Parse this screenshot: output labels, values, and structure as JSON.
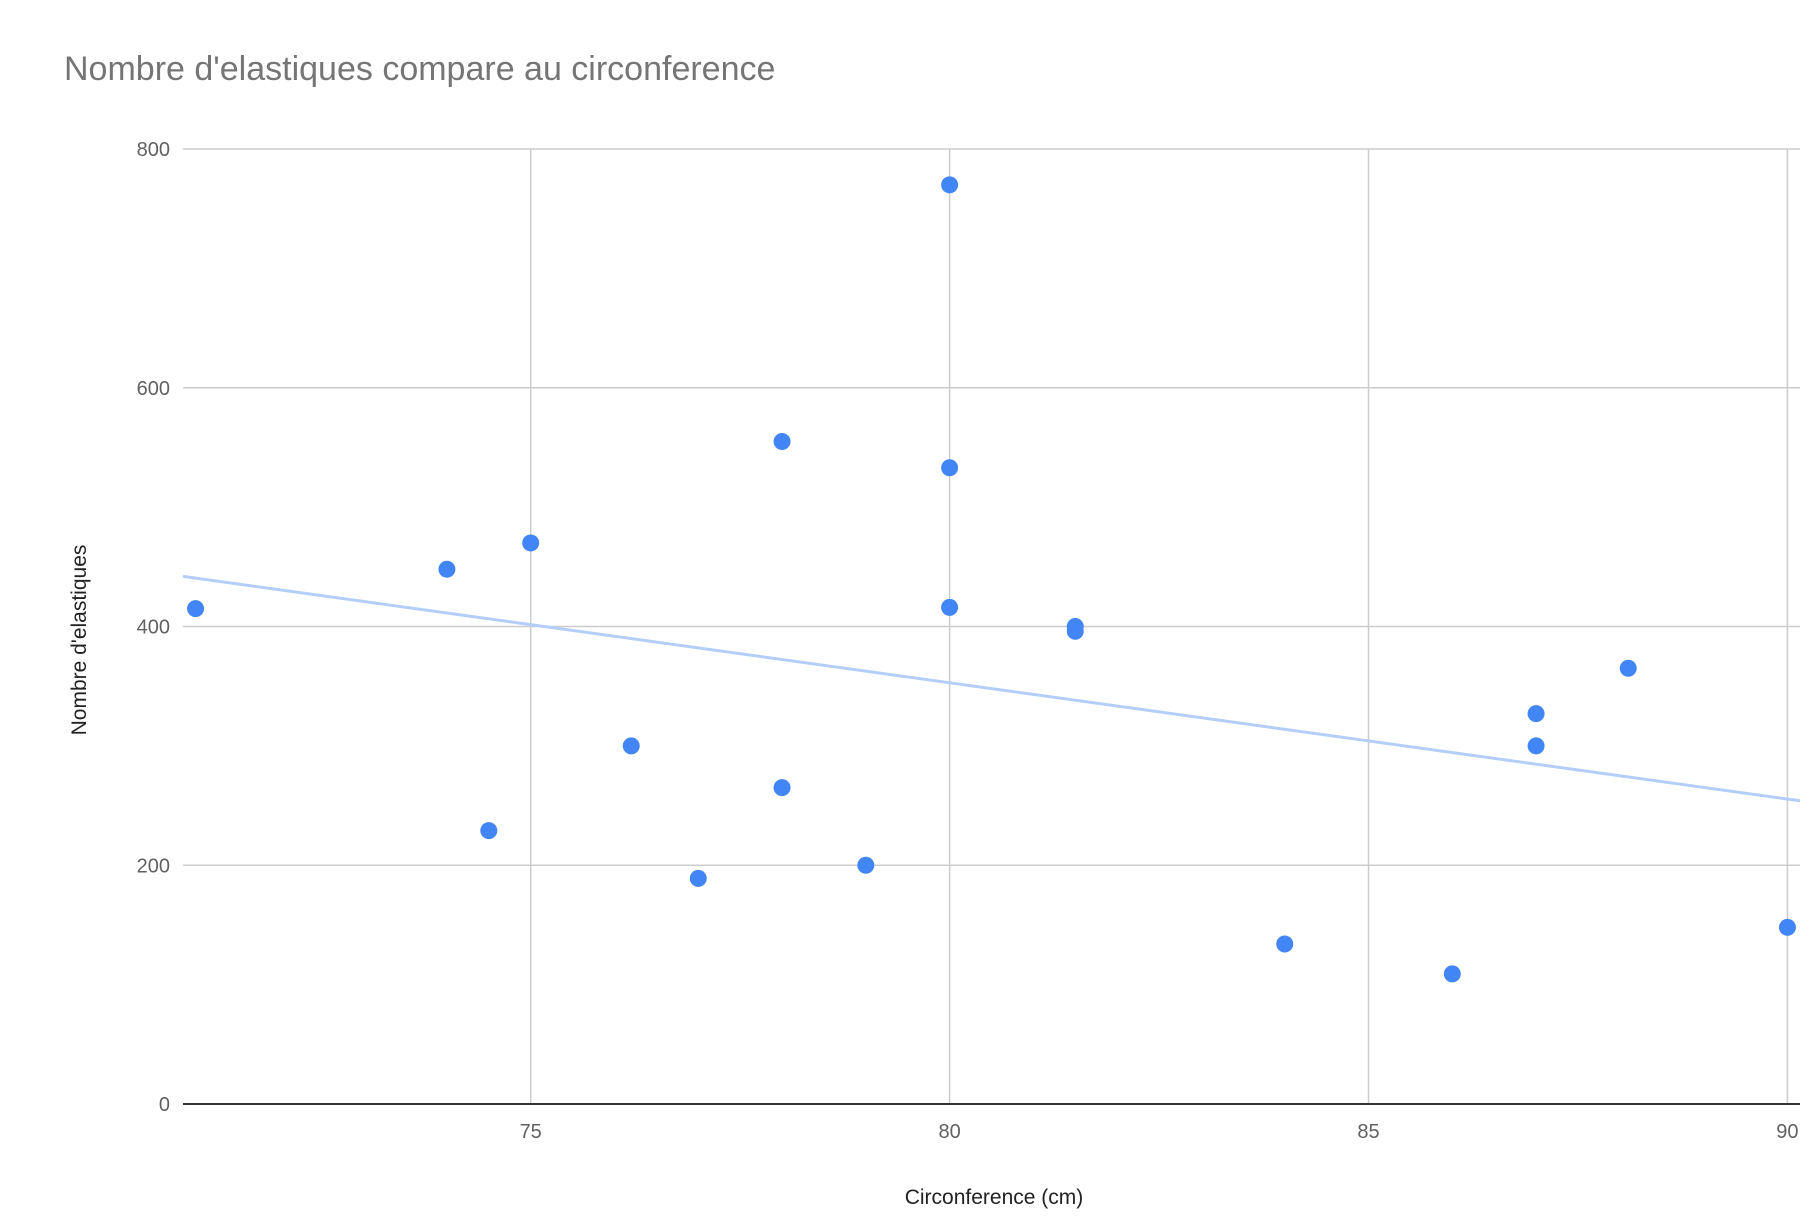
{
  "chart_data": {
    "type": "scatter",
    "title": "Nombre d'elastiques compare au circonference",
    "xlabel": "Circonference (cm)",
    "ylabel": "Nombre d'elastiques",
    "xlim": [
      70.85,
      90.15
    ],
    "ylim": [
      0,
      800
    ],
    "x_ticks": [
      {
        "value": 75,
        "label": "75"
      },
      {
        "value": 80,
        "label": "80"
      },
      {
        "value": 85,
        "label": "85"
      },
      {
        "value": 90,
        "label": "90"
      }
    ],
    "y_ticks": [
      {
        "value": 0,
        "label": "0"
      },
      {
        "value": 200,
        "label": "200"
      },
      {
        "value": 400,
        "label": "400"
      },
      {
        "value": 600,
        "label": "600"
      },
      {
        "value": 800,
        "label": "800"
      }
    ],
    "grid": true,
    "legend": "none",
    "colors": {
      "points": "#4285f4",
      "trendline": "#b3cefa"
    },
    "series": [
      {
        "points": [
          {
            "x": 71,
            "y": 415
          },
          {
            "x": 74,
            "y": 448
          },
          {
            "x": 74.5,
            "y": 229
          },
          {
            "x": 75,
            "y": 470
          },
          {
            "x": 76.2,
            "y": 300
          },
          {
            "x": 77,
            "y": 189
          },
          {
            "x": 78,
            "y": 555
          },
          {
            "x": 78,
            "y": 265
          },
          {
            "x": 79,
            "y": 200
          },
          {
            "x": 80,
            "y": 770
          },
          {
            "x": 80,
            "y": 533
          },
          {
            "x": 80,
            "y": 416
          },
          {
            "x": 81.5,
            "y": 400
          },
          {
            "x": 81.5,
            "y": 396
          },
          {
            "x": 84,
            "y": 134
          },
          {
            "x": 86,
            "y": 109
          },
          {
            "x": 87,
            "y": 327
          },
          {
            "x": 87,
            "y": 300
          },
          {
            "x": 88.1,
            "y": 365
          },
          {
            "x": 90,
            "y": 148
          }
        ]
      }
    ],
    "trendline": {
      "type": "linear",
      "x": [
        70.85,
        90.15
      ],
      "y": [
        442,
        254
      ]
    }
  }
}
